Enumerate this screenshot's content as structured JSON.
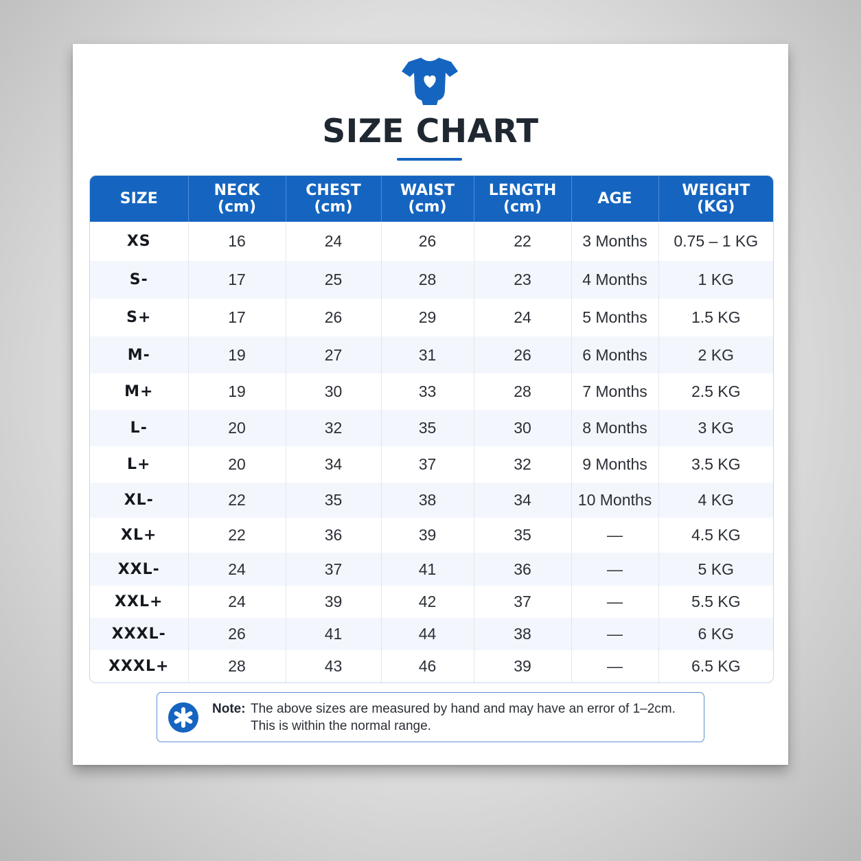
{
  "header": {
    "title": "SIZE CHART"
  },
  "icons": {
    "top": "baby-onesie-heart-icon",
    "note": "asterisk-icon"
  },
  "colors": {
    "accent": "#1565c0",
    "header_text": "#ffffff",
    "row_alt": "#f3f7fd"
  },
  "table": {
    "columns": [
      {
        "label": "SIZE",
        "unit": ""
      },
      {
        "label": "NECK",
        "unit": "(cm)"
      },
      {
        "label": "CHEST",
        "unit": "(cm)"
      },
      {
        "label": "WAIST",
        "unit": "(cm)"
      },
      {
        "label": "LENGTH",
        "unit": "(cm)"
      },
      {
        "label": "AGE",
        "unit": ""
      },
      {
        "label": "WEIGHT",
        "unit": "(KG)"
      }
    ],
    "rows": [
      [
        "XS",
        "16",
        "24",
        "26",
        "22",
        "3 Months",
        "0.75 – 1 KG"
      ],
      [
        "S-",
        "17",
        "25",
        "28",
        "23",
        "4 Months",
        "1 KG"
      ],
      [
        "S+",
        "17",
        "26",
        "29",
        "24",
        "5 Months",
        "1.5 KG"
      ],
      [
        "M-",
        "19",
        "27",
        "31",
        "26",
        "6 Months",
        "2 KG"
      ],
      [
        "M+",
        "19",
        "30",
        "33",
        "28",
        "7 Months",
        "2.5 KG"
      ],
      [
        "L-",
        "20",
        "32",
        "35",
        "30",
        "8 Months",
        "3 KG"
      ],
      [
        "L+",
        "20",
        "34",
        "37",
        "32",
        "9 Months",
        "3.5 KG"
      ],
      [
        "XL-",
        "22",
        "35",
        "38",
        "34",
        "10 Months",
        "4 KG"
      ],
      [
        "XL+",
        "22",
        "36",
        "39",
        "35",
        "—",
        "4.5 KG"
      ],
      [
        "XXL-",
        "24",
        "37",
        "41",
        "36",
        "—",
        "5 KG"
      ],
      [
        "XXL+",
        "24",
        "39",
        "42",
        "37",
        "—",
        "5.5 KG"
      ],
      [
        "XXXL-",
        "26",
        "41",
        "44",
        "38",
        "—",
        "6 KG"
      ],
      [
        "XXXL+",
        "28",
        "43",
        "46",
        "39",
        "—",
        "6.5 KG"
      ]
    ]
  },
  "note": {
    "label": "Note:",
    "line1": "The above sizes are measured by hand and may have an error of 1–2cm.",
    "line2": "This is within the normal range."
  }
}
